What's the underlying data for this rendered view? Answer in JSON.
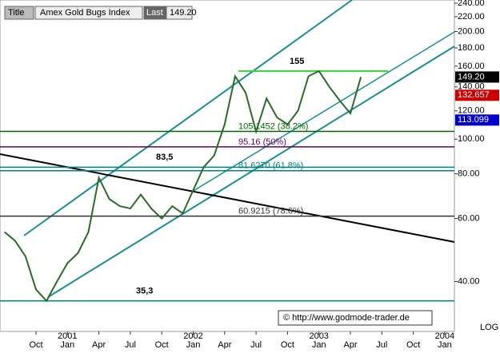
{
  "chart_data": {
    "type": "line",
    "header_title_label": "Title",
    "header_last_label": "Last",
    "header_last_value": "149.20",
    "copyright": "© http://www.godmode-trader.de",
    "scale_label": "LOG",
    "log": true,
    "categories": [
      null,
      null,
      null,
      "Oct",
      null,
      null,
      "Jan",
      null,
      null,
      "Apr",
      null,
      null,
      "Jul",
      null,
      null,
      "Oct",
      null,
      null,
      "Jan",
      null,
      null,
      "Apr",
      null,
      null,
      "Jul",
      null,
      null,
      "Oct",
      null,
      null,
      "Jan",
      null,
      null,
      "Apr",
      null,
      null,
      "Jul",
      null,
      null,
      "Oct",
      null,
      null,
      "Jan"
    ],
    "year_labels": [
      "2001",
      "2002",
      "2003",
      "2004"
    ],
    "series": [
      {
        "name": "Amex Gold Bugs Index",
        "color": "#2a6b2a",
        "values": [
          55,
          52,
          47,
          38,
          35.3,
          40,
          45,
          48,
          55,
          78,
          68,
          65,
          64,
          70,
          64,
          60,
          65,
          62,
          72,
          83.5,
          90,
          110,
          150,
          135,
          105,
          130,
          115,
          110,
          120,
          150,
          155,
          140,
          128,
          118,
          149.2,
          null,
          null,
          null,
          null,
          null,
          null,
          null,
          null
        ]
      }
    ],
    "ylim": [
      29,
      245
    ],
    "yticks": [
      {
        "value": 40,
        "label": "40.00"
      },
      {
        "value": 60,
        "label": "60.00"
      },
      {
        "value": 80,
        "label": "80.00"
      },
      {
        "value": 100,
        "label": "100.00"
      },
      {
        "value": 120,
        "label": "120.00"
      },
      {
        "value": 140,
        "label": "140.00"
      },
      {
        "value": 160,
        "label": "160.00"
      },
      {
        "value": 180,
        "label": "180.00"
      },
      {
        "value": 200,
        "label": "200.00"
      },
      {
        "value": 220,
        "label": "220.00"
      },
      {
        "value": 240,
        "label": "240.00"
      }
    ],
    "levels": [
      {
        "value": 155,
        "label": "155",
        "color": "#33dd33"
      },
      {
        "value": 105.1452,
        "label": "105.1452 (38.2%)",
        "color": "#006600"
      },
      {
        "value": 95.16,
        "label": "95.16 (50%)",
        "color": "#660066"
      },
      {
        "value": 83.5,
        "label": "83,5",
        "color": "#008080"
      },
      {
        "value": 81.627,
        "label": "81.6270 (61.8%)",
        "color": "#008080"
      },
      {
        "value": 60.9215,
        "label": "60.9215 (78.6%)",
        "color": "#333333"
      },
      {
        "value": 35.3,
        "label": "35,3",
        "color": "#008080"
      }
    ],
    "price_tags": [
      {
        "value": 149.2,
        "label": "149.20",
        "color": "#000000"
      },
      {
        "value": 132.657,
        "label": "132.657",
        "color": "#cc0000"
      },
      {
        "value": 113.099,
        "label": "113.099",
        "color": "#0000cc"
      }
    ]
  }
}
